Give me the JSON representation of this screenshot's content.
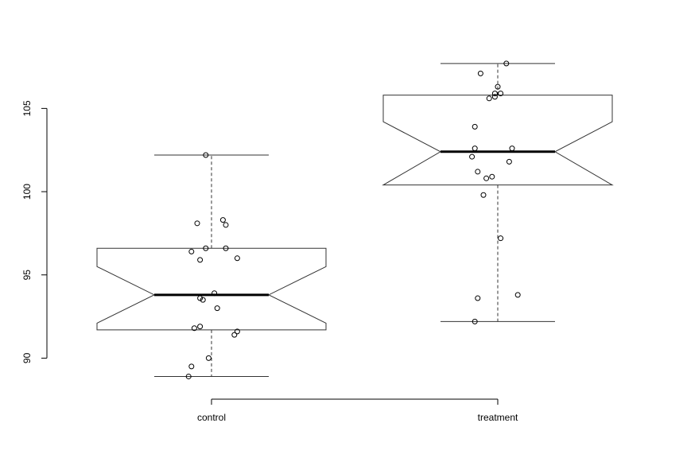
{
  "chart_data": {
    "type": "boxplot",
    "title": "",
    "xlabel": "",
    "ylabel": "",
    "ylim": [
      88.3,
      108.6
    ],
    "yticks": [
      90,
      95,
      100,
      105
    ],
    "ytick_labels": [
      "90",
      "95",
      "100",
      "105"
    ],
    "categories": [
      "control",
      "treatment"
    ],
    "grid": false,
    "notched": true,
    "boxes": [
      {
        "name": "control",
        "whisker_low": 88.9,
        "q1": 91.7,
        "median": 93.8,
        "q3": 96.6,
        "whisker_high": 102.2,
        "notch_low": 92.1,
        "notch_high": 95.5
      },
      {
        "name": "treatment",
        "whisker_low": 92.2,
        "q1": 100.4,
        "median": 102.4,
        "q3": 105.8,
        "whisker_high": 107.7,
        "notch_low": 100.4,
        "notch_high": 104.2
      }
    ],
    "points": [
      {
        "group": "control",
        "jitter": -0.08,
        "y": 88.9
      },
      {
        "group": "control",
        "jitter": -0.07,
        "y": 89.5
      },
      {
        "group": "control",
        "jitter": -0.01,
        "y": 90.0
      },
      {
        "group": "control",
        "jitter": 0.08,
        "y": 91.4
      },
      {
        "group": "control",
        "jitter": 0.09,
        "y": 91.6
      },
      {
        "group": "control",
        "jitter": -0.06,
        "y": 91.8
      },
      {
        "group": "control",
        "jitter": -0.04,
        "y": 91.9
      },
      {
        "group": "control",
        "jitter": 0.02,
        "y": 93.0
      },
      {
        "group": "control",
        "jitter": -0.03,
        "y": 93.5
      },
      {
        "group": "control",
        "jitter": -0.04,
        "y": 93.6
      },
      {
        "group": "control",
        "jitter": 0.01,
        "y": 93.9
      },
      {
        "group": "control",
        "jitter": -0.04,
        "y": 95.9
      },
      {
        "group": "control",
        "jitter": 0.09,
        "y": 96.0
      },
      {
        "group": "control",
        "jitter": -0.07,
        "y": 96.4
      },
      {
        "group": "control",
        "jitter": -0.02,
        "y": 96.6
      },
      {
        "group": "control",
        "jitter": 0.05,
        "y": 96.6
      },
      {
        "group": "control",
        "jitter": 0.05,
        "y": 98.0
      },
      {
        "group": "control",
        "jitter": -0.05,
        "y": 98.1
      },
      {
        "group": "control",
        "jitter": 0.04,
        "y": 98.3
      },
      {
        "group": "control",
        "jitter": -0.02,
        "y": 102.2
      },
      {
        "group": "treatment",
        "jitter": -0.08,
        "y": 92.2
      },
      {
        "group": "treatment",
        "jitter": -0.07,
        "y": 93.6
      },
      {
        "group": "treatment",
        "jitter": 0.07,
        "y": 93.8
      },
      {
        "group": "treatment",
        "jitter": 0.01,
        "y": 97.2
      },
      {
        "group": "treatment",
        "jitter": -0.05,
        "y": 99.8
      },
      {
        "group": "treatment",
        "jitter": -0.04,
        "y": 100.8
      },
      {
        "group": "treatment",
        "jitter": -0.02,
        "y": 100.9
      },
      {
        "group": "treatment",
        "jitter": -0.07,
        "y": 101.2
      },
      {
        "group": "treatment",
        "jitter": 0.04,
        "y": 101.8
      },
      {
        "group": "treatment",
        "jitter": -0.09,
        "y": 102.1
      },
      {
        "group": "treatment",
        "jitter": -0.08,
        "y": 102.6
      },
      {
        "group": "treatment",
        "jitter": 0.05,
        "y": 102.6
      },
      {
        "group": "treatment",
        "jitter": -0.08,
        "y": 103.9
      },
      {
        "group": "treatment",
        "jitter": -0.03,
        "y": 105.6
      },
      {
        "group": "treatment",
        "jitter": -0.01,
        "y": 105.7
      },
      {
        "group": "treatment",
        "jitter": -0.01,
        "y": 105.9
      },
      {
        "group": "treatment",
        "jitter": 0.01,
        "y": 105.9
      },
      {
        "group": "treatment",
        "jitter": 0.0,
        "y": 106.3
      },
      {
        "group": "treatment",
        "jitter": -0.06,
        "y": 107.1
      },
      {
        "group": "treatment",
        "jitter": 0.03,
        "y": 107.7
      }
    ]
  }
}
